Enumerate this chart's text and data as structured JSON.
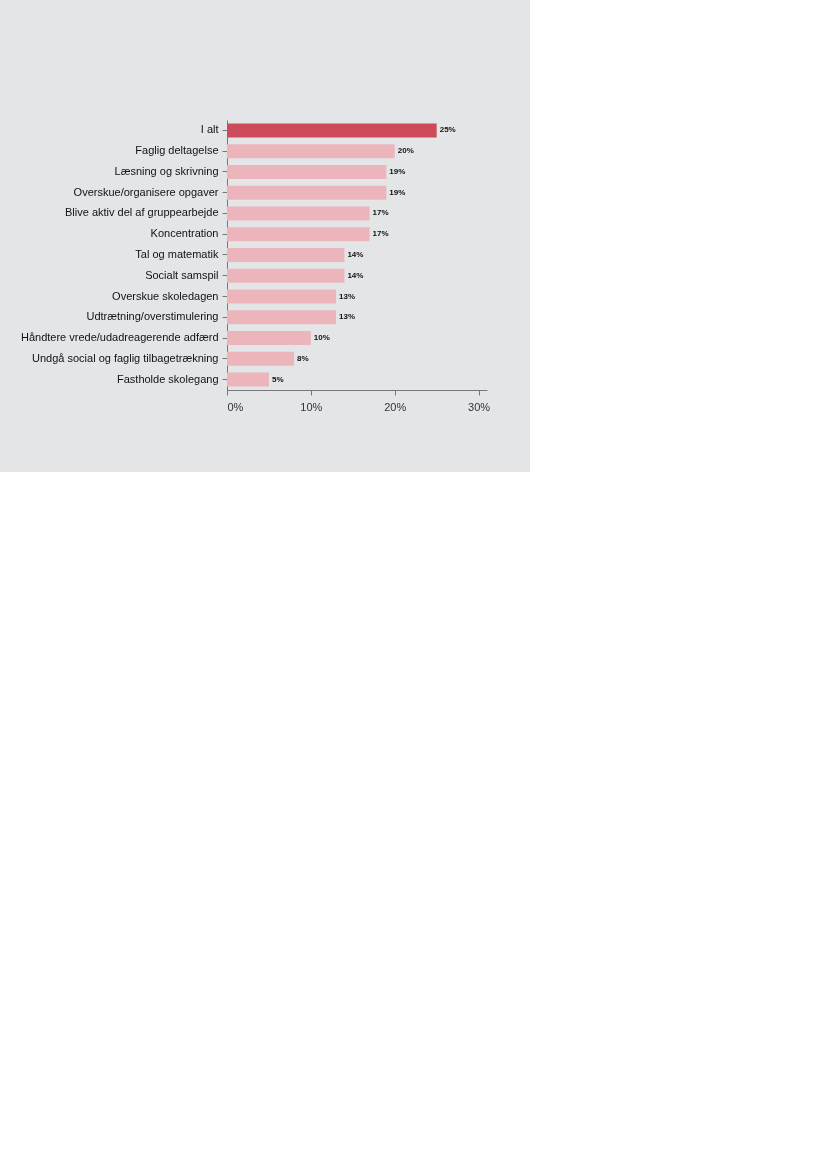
{
  "chart_data": {
    "type": "bar",
    "orientation": "horizontal",
    "categories": [
      "I alt",
      "Faglig deltagelse",
      "Læsning og skrivning",
      "Overskue/organisere opgaver",
      "Blive aktiv del af gruppearbejde",
      "Koncentration",
      "Tal og matematik",
      "Socialt samspil",
      "Overskue skoledagen",
      "Udtrætning/overstimulering",
      "Håndtere vrede/udadreagerende adfærd",
      "Undgå social og faglig tilbagetrækning",
      "Fastholde skolegang"
    ],
    "values": [
      25,
      20,
      19,
      19,
      17,
      17,
      14,
      14,
      13,
      13,
      10,
      8,
      5
    ],
    "colors": [
      "#cc4a5a",
      "#ebb5bb",
      "#ebb5bb",
      "#ebb5bb",
      "#ebb5bb",
      "#ebb5bb",
      "#ebb5bb",
      "#ebb5bb",
      "#ebb5bb",
      "#ebb5bb",
      "#ebb5bb",
      "#ebb5bb",
      "#ebb5bb"
    ],
    "value_labels": [
      "25%",
      "20%",
      "19%",
      "19%",
      "17%",
      "17%",
      "14%",
      "14%",
      "13%",
      "13%",
      "10%",
      "8%",
      "5%"
    ],
    "xlim": [
      0,
      31
    ],
    "xticks": [
      {
        "value": 0,
        "label": "0%"
      },
      {
        "value": 10,
        "label": "10%"
      },
      {
        "value": 20,
        "label": "20%"
      },
      {
        "value": 30,
        "label": "30%"
      }
    ],
    "grid": false
  }
}
